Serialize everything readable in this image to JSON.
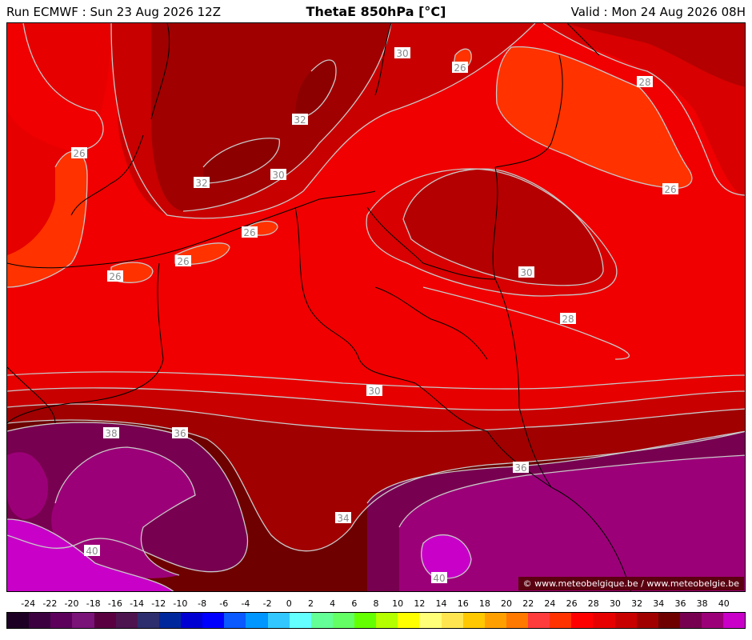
{
  "header": {
    "run": "Run ECMWF : Sun 23 Aug 2026 12Z",
    "title": "ThetaE 850hPa [°C]",
    "valid": "Valid : Mon 24 Aug 2026 08H"
  },
  "credit": "© www.meteobelgique.be / www.meteobelgie.be",
  "contour_labels": [
    "30",
    "26",
    "28",
    "32",
    "26",
    "30",
    "26",
    "32",
    "26",
    "26",
    "26",
    "30",
    "28",
    "30",
    "38",
    "36",
    "36",
    "34",
    "40",
    "40"
  ],
  "legend": {
    "ticks": [
      "-24",
      "-22",
      "-20",
      "-18",
      "-16",
      "-14",
      "-12",
      "-10",
      "-8",
      "-6",
      "-4",
      "-2",
      "0",
      "2",
      "4",
      "6",
      "8",
      "10",
      "12",
      "14",
      "16",
      "18",
      "20",
      "22",
      "24",
      "26",
      "28",
      "30",
      "32",
      "34",
      "36",
      "38",
      "40"
    ],
    "colors": [
      "#1e0025",
      "#3c0040",
      "#5c005c",
      "#7a1478",
      "#5a0040",
      "#4e1450",
      "#2e2e6e",
      "#00289c",
      "#0000d2",
      "#0000ff",
      "#0a5aff",
      "#0096ff",
      "#32c8ff",
      "#64ffff",
      "#64ff96",
      "#64ff64",
      "#64ff00",
      "#b4ff00",
      "#ffff00",
      "#ffff78",
      "#ffe650",
      "#ffc800",
      "#ffa000",
      "#ff7800",
      "#ff3c3c",
      "#ff3200",
      "#ff0000",
      "#e60000",
      "#c80000",
      "#a00000",
      "#6e0000",
      "#780050",
      "#9c0078",
      "#c800c8"
    ]
  }
}
